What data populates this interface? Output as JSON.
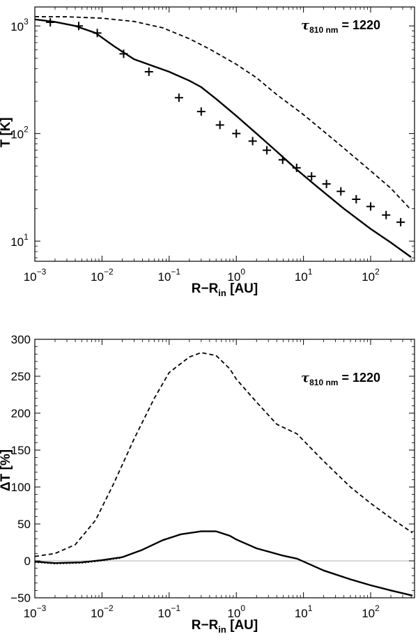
{
  "chart_data": [
    {
      "type": "line",
      "xlabel": "R−R",
      "xlabel_sub": "in",
      "xlabel_unit": "[AU]",
      "ylabel": "T [K]",
      "xscale": "log",
      "yscale": "log",
      "xlim": [
        0.001,
        450
      ],
      "ylim": [
        6.5,
        1500
      ],
      "x_ticks": [
        {
          "value": 0.001,
          "base": "10",
          "exp": "−3"
        },
        {
          "value": 0.01,
          "base": "10",
          "exp": "−2"
        },
        {
          "value": 0.1,
          "base": "10",
          "exp": "−1"
        },
        {
          "value": 1,
          "base": "10",
          "exp": "0"
        },
        {
          "value": 10,
          "base": "10",
          "exp": "1"
        },
        {
          "value": 100,
          "base": "10",
          "exp": "2"
        }
      ],
      "y_ticks": [
        {
          "value": 10,
          "base": "10",
          "exp": "1"
        },
        {
          "value": 100,
          "base": "10",
          "exp": "2"
        },
        {
          "value": 1000,
          "base": "10",
          "exp": "3"
        }
      ],
      "annotation": {
        "symbol": "τ",
        "subscript": "810 nm",
        "text": " = 1220"
      },
      "grid": false,
      "series": [
        {
          "style": "solid",
          "points": [
            [
              0.001,
              1150
            ],
            [
              0.002,
              1090
            ],
            [
              0.004,
              1000
            ],
            [
              0.008,
              860
            ],
            [
              0.015,
              650
            ],
            [
              0.03,
              490
            ],
            [
              0.06,
              420
            ],
            [
              0.1,
              375
            ],
            [
              0.2,
              310
            ],
            [
              0.3,
              270
            ],
            [
              0.5,
              210
            ],
            [
              1,
              146
            ],
            [
              2,
              100
            ],
            [
              4,
              68
            ],
            [
              8,
              46
            ],
            [
              16,
              32
            ],
            [
              40,
              20
            ],
            [
              100,
              13
            ],
            [
              200,
              9.7
            ],
            [
              400,
              7.1
            ]
          ]
        },
        {
          "style": "dashed",
          "points": [
            [
              0.001,
              1220
            ],
            [
              0.003,
              1215
            ],
            [
              0.01,
              1180
            ],
            [
              0.03,
              1100
            ],
            [
              0.08,
              960
            ],
            [
              0.2,
              760
            ],
            [
              0.4,
              610
            ],
            [
              1,
              440
            ],
            [
              2,
              330
            ],
            [
              4,
              230
            ],
            [
              10,
              150
            ],
            [
              30,
              85
            ],
            [
              100,
              45
            ],
            [
              200,
              31
            ],
            [
              400,
              19.5
            ]
          ]
        },
        {
          "style": "dotted",
          "points": [
            [
              0.001,
              1150
            ],
            [
              0.002,
              1090
            ],
            [
              0.004,
              1000
            ],
            [
              0.008,
              860
            ],
            [
              0.02,
              570
            ]
          ]
        },
        {
          "style": "markers",
          "marker": "+",
          "points": [
            [
              0.0017,
              1080
            ],
            [
              0.0045,
              1000
            ],
            [
              0.0085,
              860
            ],
            [
              0.021,
              550
            ],
            [
              0.05,
              375
            ],
            [
              0.14,
              215
            ],
            [
              0.3,
              160
            ],
            [
              0.57,
              120
            ],
            [
              1.0,
              100
            ],
            [
              1.75,
              85
            ],
            [
              2.85,
              70
            ],
            [
              4.9,
              57
            ],
            [
              7.9,
              48
            ],
            [
              13.2,
              40
            ],
            [
              22,
              34
            ],
            [
              36,
              29
            ],
            [
              61,
              24.5
            ],
            [
              100,
              21
            ],
            [
              170,
              17.5
            ],
            [
              280,
              15
            ]
          ]
        }
      ]
    },
    {
      "type": "line",
      "xlabel": "R−R",
      "xlabel_sub": "in",
      "xlabel_unit": "[AU]",
      "ylabel": "ΔT [%]",
      "xscale": "log",
      "yscale": "linear",
      "xlim": [
        0.001,
        450
      ],
      "ylim": [
        -50,
        300
      ],
      "x_ticks": [
        {
          "value": 0.001,
          "base": "10",
          "exp": "−3"
        },
        {
          "value": 0.01,
          "base": "10",
          "exp": "−2"
        },
        {
          "value": 0.1,
          "base": "10",
          "exp": "−1"
        },
        {
          "value": 1,
          "base": "10",
          "exp": "0"
        },
        {
          "value": 10,
          "base": "10",
          "exp": "1"
        },
        {
          "value": 100,
          "base": "10",
          "exp": "2"
        }
      ],
      "y_ticks": [
        {
          "value": -50,
          "label": "−50"
        },
        {
          "value": 0,
          "label": "0"
        },
        {
          "value": 50,
          "label": "50"
        },
        {
          "value": 100,
          "label": "100"
        },
        {
          "value": 150,
          "label": "150"
        },
        {
          "value": 200,
          "label": "200"
        },
        {
          "value": 250,
          "label": "250"
        },
        {
          "value": 300,
          "label": "300"
        }
      ],
      "zero_line": true,
      "annotation": {
        "symbol": "τ",
        "subscript": "810 nm",
        "text": " = 1220"
      },
      "grid": false,
      "series": [
        {
          "style": "solid",
          "points": [
            [
              0.001,
              -1
            ],
            [
              0.002,
              -3
            ],
            [
              0.005,
              -2
            ],
            [
              0.01,
              1
            ],
            [
              0.02,
              5
            ],
            [
              0.04,
              15
            ],
            [
              0.08,
              28
            ],
            [
              0.15,
              36
            ],
            [
              0.3,
              40
            ],
            [
              0.5,
              40
            ],
            [
              0.8,
              34
            ],
            [
              1,
              29
            ],
            [
              2,
              17
            ],
            [
              5,
              7
            ],
            [
              8,
              3
            ],
            [
              20,
              -13
            ],
            [
              50,
              -25
            ],
            [
              100,
              -33
            ],
            [
              200,
              -40
            ],
            [
              420,
              -47
            ]
          ]
        },
        {
          "style": "dotted",
          "points": [
            [
              0.001,
              -2
            ],
            [
              0.002,
              -4
            ],
            [
              0.005,
              -3
            ],
            [
              0.01,
              0
            ],
            [
              0.02,
              4
            ]
          ]
        },
        {
          "style": "dashed",
          "points": [
            [
              0.001,
              6
            ],
            [
              0.002,
              10
            ],
            [
              0.004,
              22
            ],
            [
              0.008,
              55
            ],
            [
              0.015,
              105
            ],
            [
              0.03,
              165
            ],
            [
              0.06,
              220
            ],
            [
              0.1,
              255
            ],
            [
              0.2,
              276
            ],
            [
              0.3,
              282
            ],
            [
              0.5,
              278
            ],
            [
              0.8,
              260
            ],
            [
              1,
              246
            ],
            [
              2,
              215
            ],
            [
              4,
              185
            ],
            [
              8,
              172
            ],
            [
              20,
              135
            ],
            [
              50,
              100
            ],
            [
              100,
              78
            ],
            [
              200,
              58
            ],
            [
              420,
              38
            ]
          ]
        }
      ]
    }
  ]
}
